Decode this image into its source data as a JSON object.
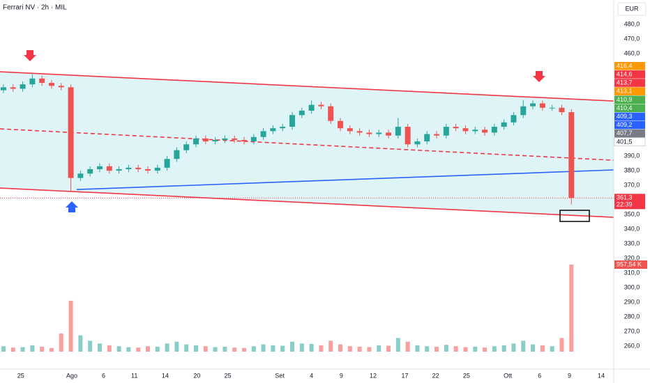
{
  "chart_data": {
    "type": "candlestick",
    "title": "Ferrari NV · 2h · MIL",
    "currency": "EUR",
    "up_color": "#26a69a",
    "down_color": "#ef5350",
    "xlim": [
      -0.36,
      63.4
    ],
    "ylim": [
      244.3,
      496.7
    ],
    "grid": false,
    "xticks": [
      {
        "value": 1.8,
        "label": "25"
      },
      {
        "value": 7.1,
        "label": "Ago"
      },
      {
        "value": 10.4,
        "label": "6"
      },
      {
        "value": 13.6,
        "label": "11"
      },
      {
        "value": 16.8,
        "label": "14"
      },
      {
        "value": 20.1,
        "label": "20"
      },
      {
        "value": 23.3,
        "label": "25"
      },
      {
        "value": 28.7,
        "label": "Set"
      },
      {
        "value": 32.0,
        "label": "4"
      },
      {
        "value": 35.1,
        "label": "9"
      },
      {
        "value": 38.4,
        "label": "12"
      },
      {
        "value": 41.7,
        "label": "17"
      },
      {
        "value": 44.9,
        "label": "22"
      },
      {
        "value": 48.1,
        "label": "25"
      },
      {
        "value": 52.4,
        "label": "Ott"
      },
      {
        "value": 55.7,
        "label": "6"
      },
      {
        "value": 58.8,
        "label": "9"
      },
      {
        "value": 62.1,
        "label": "14"
      }
    ],
    "yticks": [
      {
        "value": 480,
        "label": "480,0"
      },
      {
        "value": 470,
        "label": "470,0"
      },
      {
        "value": 460,
        "label": "460,0"
      },
      {
        "value": 390,
        "label": "390,0"
      },
      {
        "value": 380,
        "label": "380,0"
      },
      {
        "value": 370,
        "label": "370,0"
      },
      {
        "value": 350,
        "label": "350,0"
      },
      {
        "value": 340,
        "label": "340,0"
      },
      {
        "value": 330,
        "label": "330,0"
      },
      {
        "value": 320,
        "label": "320,0"
      },
      {
        "value": 310,
        "label": "310,0"
      },
      {
        "value": 300,
        "label": "300,0"
      },
      {
        "value": 290,
        "label": "290,0"
      },
      {
        "value": 280,
        "label": "280,0"
      },
      {
        "value": 270,
        "label": "270,0"
      },
      {
        "value": 260,
        "label": "260,0"
      }
    ],
    "open": [
      435,
      437,
      436,
      439,
      443,
      440,
      438,
      437,
      375,
      378,
      381,
      383,
      380,
      381,
      382,
      381,
      380,
      382,
      388,
      394,
      398,
      402,
      400,
      401,
      402,
      401,
      400,
      403,
      407,
      409,
      410,
      418,
      421,
      425,
      424,
      414,
      409,
      407,
      406,
      405,
      406,
      404,
      410,
      398,
      400,
      405,
      404,
      410,
      409,
      407,
      408,
      406,
      410,
      413,
      418,
      424,
      426,
      423,
      423,
      420
    ],
    "high": [
      439,
      439,
      441,
      446,
      445,
      442,
      440,
      439,
      380,
      383,
      385,
      385,
      383,
      384,
      384,
      383,
      384,
      390,
      396,
      400,
      404,
      404,
      403,
      404,
      404,
      403,
      405,
      409,
      411,
      412,
      420,
      423,
      428,
      427,
      426,
      416,
      411,
      409,
      408,
      408,
      408,
      416,
      412,
      402,
      407,
      407,
      412,
      412,
      411,
      410,
      410,
      412,
      415,
      420,
      428,
      428,
      428,
      425,
      425,
      422
    ],
    "low": [
      433,
      434,
      434,
      437,
      438,
      436,
      435,
      366,
      373,
      376,
      379,
      378,
      378,
      379,
      379,
      378,
      378,
      380,
      386,
      392,
      396,
      398,
      398,
      399,
      399,
      398,
      398,
      401,
      405,
      407,
      408,
      416,
      419,
      422,
      412,
      407,
      405,
      404,
      403,
      403,
      402,
      402,
      396,
      396,
      398,
      402,
      402,
      407,
      405,
      405,
      404,
      404,
      408,
      411,
      416,
      422,
      421,
      421,
      418,
      357
    ],
    "close": [
      437,
      436,
      439,
      443,
      440,
      438,
      437,
      375,
      378,
      381,
      383,
      380,
      381,
      382,
      381,
      380,
      382,
      388,
      394,
      398,
      402,
      400,
      401,
      402,
      401,
      400,
      403,
      407,
      409,
      410,
      418,
      421,
      425,
      424,
      414,
      409,
      407,
      406,
      405,
      406,
      404,
      410,
      398,
      400,
      405,
      404,
      410,
      409,
      407,
      408,
      406,
      410,
      413,
      418,
      424,
      426,
      423,
      423,
      420,
      361.3
    ],
    "volume": {
      "values": [
        60,
        45,
        50,
        70,
        55,
        40,
        200,
        560,
        180,
        120,
        90,
        70,
        60,
        50,
        45,
        60,
        55,
        90,
        110,
        80,
        70,
        60,
        50,
        55,
        45,
        40,
        60,
        80,
        70,
        65,
        110,
        90,
        85,
        70,
        120,
        80,
        60,
        55,
        50,
        70,
        65,
        150,
        110,
        70,
        60,
        55,
        75,
        60,
        50,
        55,
        45,
        60,
        70,
        90,
        120,
        80,
        70,
        60,
        150,
        957.54
      ],
      "last_label": "957,54 K"
    },
    "trendlines": [
      {
        "color": "#f23645",
        "dashed": false,
        "x": [
          -0.36,
          63.4
        ],
        "y": [
          447.6,
          427.6
        ]
      },
      {
        "color": "#f23645",
        "dashed": true,
        "x": [
          -0.36,
          63.4
        ],
        "y": [
          408.6,
          387.1
        ]
      },
      {
        "color": "#f23645",
        "dashed": false,
        "x": [
          -0.36,
          63.4
        ],
        "y": [
          368.1,
          348.1
        ]
      },
      {
        "color": "#2962ff",
        "dashed": false,
        "x": [
          7.6,
          63.4
        ],
        "y": [
          367.1,
          380.5
        ]
      }
    ],
    "channel_color": "#def4f7",
    "indicator_labels": [
      {
        "value": 416.4,
        "label": "416,4",
        "color": "#ff9800"
      },
      {
        "value": 414.6,
        "label": "414,6",
        "color": "#f23645"
      },
      {
        "value": 413.7,
        "label": "413,7",
        "color": "#f23645"
      },
      {
        "value": 413.1,
        "label": "413,1",
        "color": "#ff9800"
      },
      {
        "value": 410.9,
        "label": "410,9",
        "color": "#4caf50"
      },
      {
        "value": 410.4,
        "label": "410,4",
        "color": "#4caf50"
      },
      {
        "value": 409.3,
        "label": "409,3",
        "color": "#2962ff"
      },
      {
        "value": 409.2,
        "label": "409,2",
        "color": "#2962ff"
      },
      {
        "value": 407.7,
        "label": "407,7",
        "color": "#787b86"
      },
      {
        "value": 401.5,
        "label": "401,5",
        "color": "#ffffff"
      }
    ],
    "last_price": {
      "value": 361.3,
      "label": "361,3",
      "countdown": "22:39",
      "color": "#f23645"
    }
  }
}
